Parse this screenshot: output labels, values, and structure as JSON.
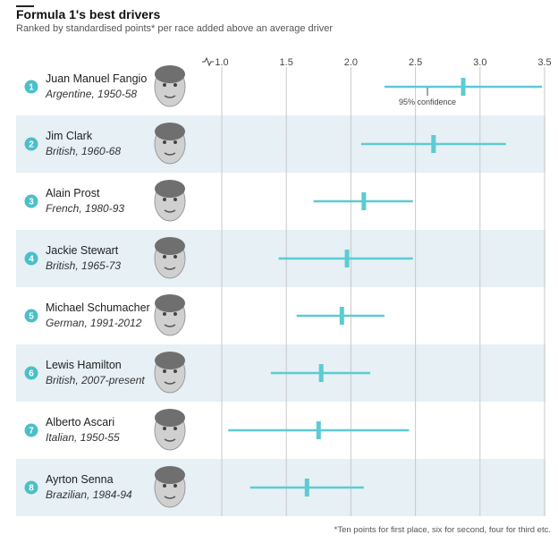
{
  "chart_data": {
    "type": "errorbar",
    "title": "Formula 1's best drivers",
    "subtitle": "Ranked by standardised points* per race added above an average driver",
    "xlim": [
      1.0,
      3.5
    ],
    "x_ticks": [
      "1.0",
      "1.5",
      "2.0",
      "2.5",
      "3.0",
      "3.5"
    ],
    "x_tick_values": [
      1.0,
      1.5,
      2.0,
      2.5,
      3.0,
      3.5
    ],
    "annotation": "95% confidence",
    "footnote": "*Ten points for first place, six for second, four for third etc.",
    "colors": {
      "series": "#5ccbd3",
      "rank_badge": "#4bbfc9",
      "band": "#e6f0f5",
      "grid": "#c8c8c8"
    },
    "drivers": [
      {
        "rank": "1",
        "name": "Juan Manuel Fangio",
        "info": "Argentine, 1950-58",
        "value": 2.87,
        "low": 2.26,
        "high": 3.48,
        "photo": "portrait-photo"
      },
      {
        "rank": "2",
        "name": "Jim Clark",
        "info": "British, 1960-68",
        "value": 2.64,
        "low": 2.08,
        "high": 3.2,
        "photo": "portrait-photo"
      },
      {
        "rank": "3",
        "name": "Alain Prost",
        "info": "French, 1980-93",
        "value": 2.1,
        "low": 1.71,
        "high": 2.48,
        "photo": "portrait-photo"
      },
      {
        "rank": "4",
        "name": "Jackie Stewart",
        "info": "British, 1965-73",
        "value": 1.97,
        "low": 1.44,
        "high": 2.48,
        "photo": "portrait-photo"
      },
      {
        "rank": "5",
        "name": "Michael Schumacher",
        "info": "German, 1991-2012",
        "value": 1.93,
        "low": 1.58,
        "high": 2.26,
        "photo": "portrait-photo"
      },
      {
        "rank": "6",
        "name": "Lewis Hamilton",
        "info": "British, 2007-present",
        "value": 1.77,
        "low": 1.38,
        "high": 2.15,
        "photo": "portrait-photo"
      },
      {
        "rank": "7",
        "name": "Alberto Ascari",
        "info": "Italian, 1950-55",
        "value": 1.75,
        "low": 1.05,
        "high": 2.45,
        "photo": "portrait-photo"
      },
      {
        "rank": "8",
        "name": "Ayrton Senna",
        "info": "Brazilian, 1984-94",
        "value": 1.66,
        "low": 1.22,
        "high": 2.1,
        "photo": "portrait-photo"
      }
    ]
  }
}
